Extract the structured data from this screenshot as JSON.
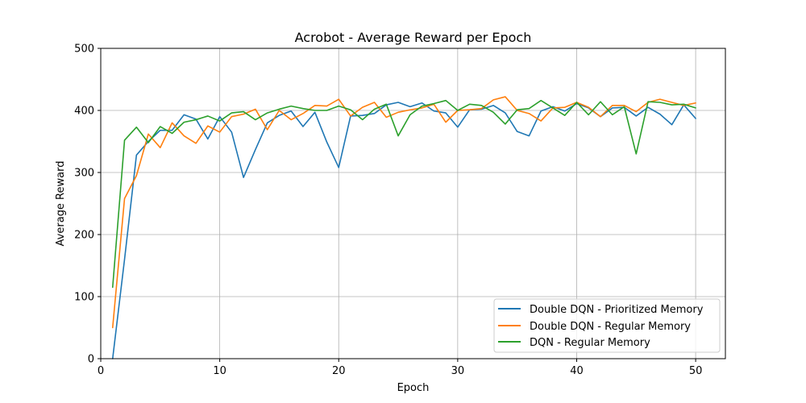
{
  "chart_data": {
    "type": "line",
    "title": "Acrobot - Average Reward per Epoch",
    "xlabel": "Epoch",
    "ylabel": "Average Reward",
    "xlim": [
      0,
      52.5
    ],
    "ylim": [
      0,
      500
    ],
    "xticks": [
      0,
      10,
      20,
      30,
      40,
      50
    ],
    "yticks": [
      0,
      100,
      200,
      300,
      400,
      500
    ],
    "grid": true,
    "legend_position": "lower-right",
    "x": [
      1,
      2,
      3,
      4,
      5,
      6,
      7,
      8,
      9,
      10,
      11,
      12,
      13,
      14,
      15,
      16,
      17,
      18,
      19,
      20,
      21,
      22,
      23,
      24,
      25,
      26,
      27,
      28,
      29,
      30,
      31,
      32,
      33,
      34,
      35,
      36,
      37,
      38,
      39,
      40,
      41,
      42,
      43,
      44,
      45,
      46,
      47,
      48,
      49,
      50
    ],
    "series": [
      {
        "name": "Double DQN - Prioritized Memory",
        "color": "#1f77b4",
        "values": [
          0,
          160,
          328,
          350,
          368,
          368,
          393,
          386,
          354,
          390,
          365,
          292,
          337,
          380,
          392,
          399,
          374,
          397,
          349,
          308,
          391,
          392,
          395,
          409,
          413,
          406,
          412,
          399,
          396,
          373,
          401,
          402,
          408,
          396,
          366,
          359,
          399,
          406,
          399,
          411,
          404,
          390,
          404,
          405,
          391,
          405,
          394,
          377,
          409,
          387
        ]
      },
      {
        "name": "Double DQN - Regular Memory",
        "color": "#ff7f0e",
        "values": [
          50,
          258,
          295,
          362,
          340,
          380,
          359,
          347,
          375,
          365,
          390,
          394,
          402,
          369,
          400,
          385,
          395,
          408,
          407,
          418,
          391,
          405,
          413,
          389,
          397,
          401,
          404,
          410,
          381,
          400,
          401,
          403,
          417,
          422,
          400,
          395,
          383,
          404,
          405,
          413,
          405,
          390,
          408,
          408,
          398,
          413,
          418,
          413,
          408,
          412
        ]
      },
      {
        "name": "DQN - Regular Memory",
        "color": "#2ca02c",
        "values": [
          115,
          352,
          373,
          348,
          374,
          363,
          381,
          385,
          391,
          383,
          396,
          398,
          385,
          396,
          402,
          407,
          403,
          400,
          400,
          407,
          401,
          385,
          402,
          410,
          359,
          393,
          407,
          411,
          416,
          400,
          410,
          408,
          397,
          378,
          401,
          403,
          416,
          404,
          392,
          413,
          393,
          414,
          393,
          406,
          330,
          414,
          413,
          409,
          410,
          404
        ]
      }
    ]
  }
}
